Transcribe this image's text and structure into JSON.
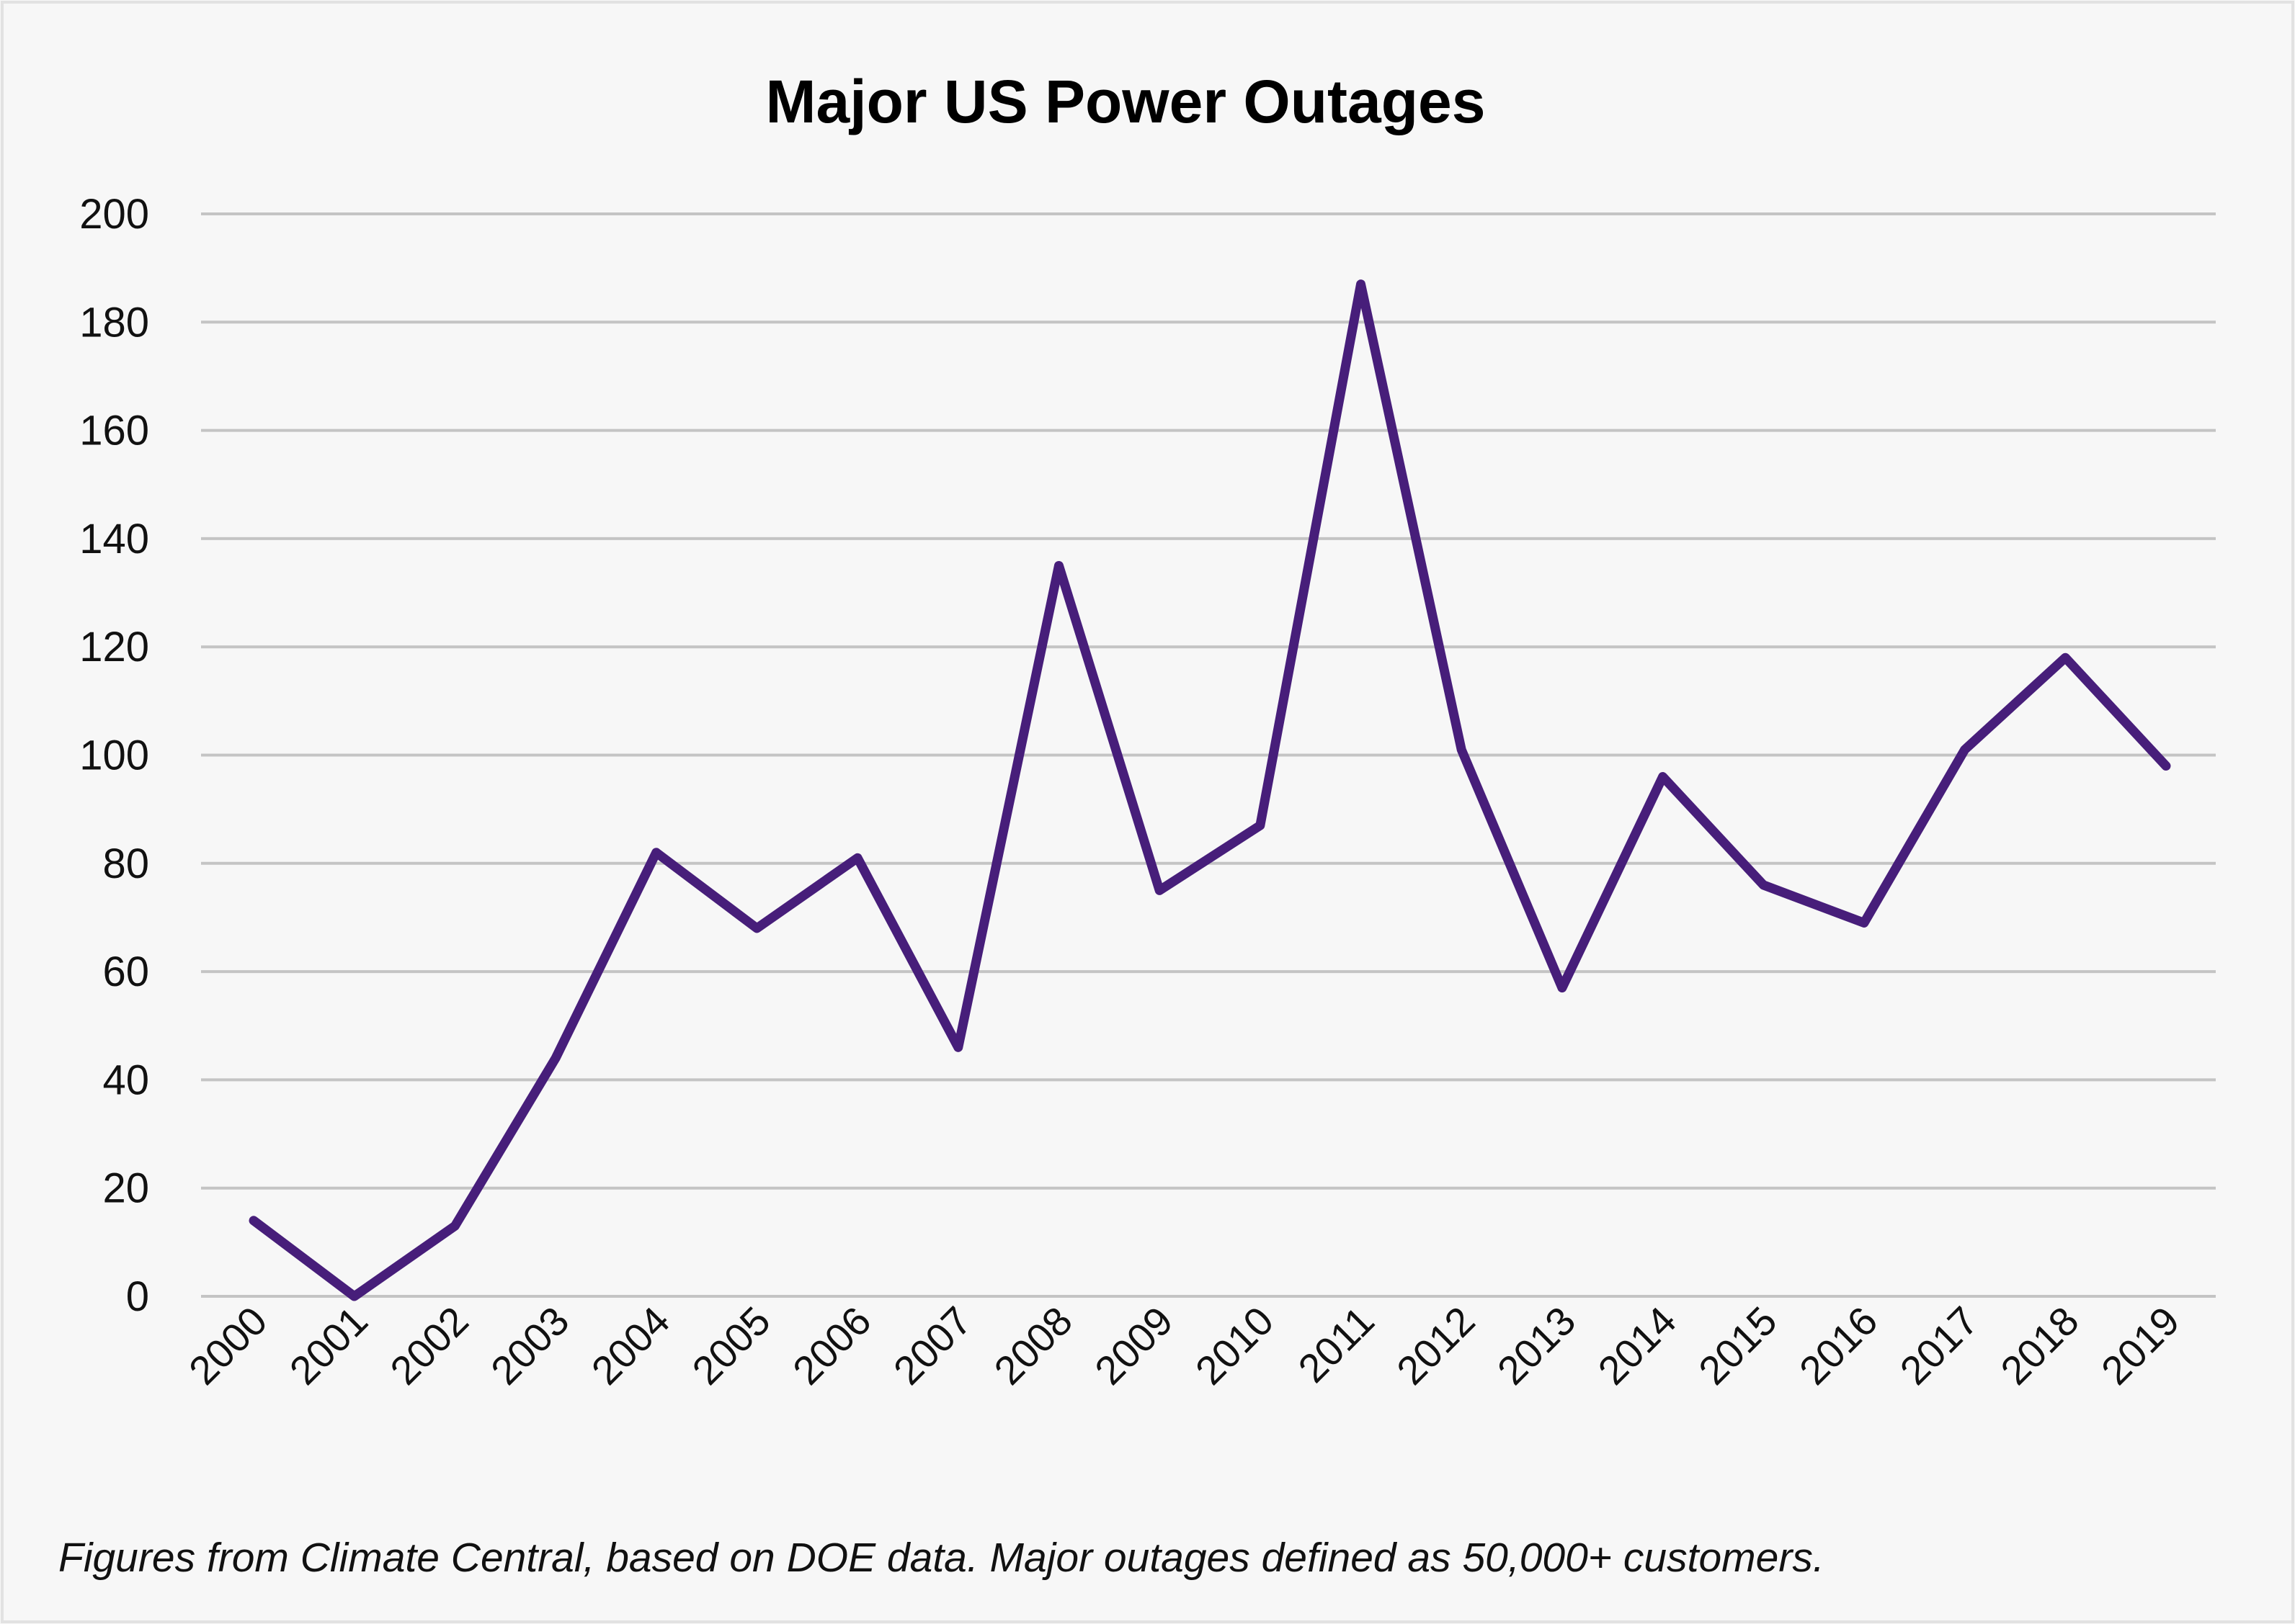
{
  "chart_data": {
    "type": "line",
    "title": "Major US Power Outages",
    "xlabel": "",
    "ylabel": "",
    "categories": [
      "2000",
      "2001",
      "2002",
      "2003",
      "2004",
      "2005",
      "2006",
      "2007",
      "2008",
      "2009",
      "2010",
      "2011",
      "2012",
      "2013",
      "2014",
      "2015",
      "2016",
      "2017",
      "2018",
      "2019"
    ],
    "values": [
      14,
      0,
      13,
      44,
      82,
      68,
      81,
      46,
      135,
      75,
      87,
      187,
      101,
      57,
      96,
      76,
      69,
      101,
      118,
      98
    ],
    "ylim": [
      0,
      200
    ],
    "yticks": [
      0,
      20,
      40,
      60,
      80,
      100,
      120,
      140,
      160,
      180,
      200
    ],
    "grid": true,
    "line_color": "#471e7a",
    "footnote": "Figures from Climate Central, based on DOE data. Major outages defined as 50,000+ customers."
  }
}
